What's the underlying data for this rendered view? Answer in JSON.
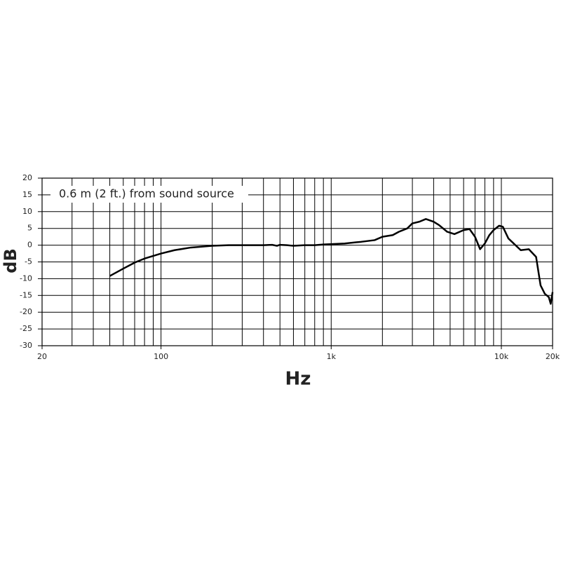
{
  "chart_data": {
    "type": "line",
    "y_label": "dB",
    "x_label": "Hz",
    "annotation": "0.6 m (2 ft.) from sound source",
    "xscale": "log",
    "xlim": [
      20,
      20000
    ],
    "xticks": [
      20,
      100,
      {
        "value": 1000,
        "label": "1k"
      },
      {
        "value": 10000,
        "label": "10k"
      },
      {
        "value": 20000,
        "label": "20k"
      }
    ],
    "xgrid": [
      30,
      40,
      50,
      60,
      70,
      80,
      90,
      200,
      300,
      400,
      500,
      600,
      700,
      800,
      900,
      2000,
      3000,
      4000,
      5000,
      6000,
      7000,
      8000,
      9000
    ],
    "ylim": [
      -30,
      20
    ],
    "yticks": [
      -30,
      -25,
      -20,
      -15,
      -10,
      -5,
      0,
      5,
      10,
      15,
      20
    ],
    "grid": true,
    "color": "#000000",
    "x": [
      50,
      60,
      70,
      80,
      100,
      120,
      150,
      200,
      250,
      300,
      400,
      450,
      480,
      500,
      550,
      600,
      700,
      800,
      900,
      1000,
      1200,
      1500,
      1800,
      2000,
      2300,
      2500,
      2800,
      3000,
      3300,
      3600,
      4000,
      4300,
      4800,
      5300,
      6000,
      6500,
      7000,
      7500,
      8000,
      8500,
      9000,
      9700,
      10200,
      11000,
      13000,
      14500,
      16000,
      17000,
      18000,
      19000,
      19500,
      20000
    ],
    "values": [
      -9.2,
      -7,
      -5.2,
      -4,
      -2.5,
      -1.5,
      -0.7,
      -0.2,
      0,
      0,
      0,
      0.1,
      -0.2,
      0.1,
      0,
      -0.2,
      0,
      0,
      0.2,
      0.3,
      0.5,
      1,
      1.5,
      2.5,
      3,
      4,
      5,
      6.5,
      7,
      7.8,
      7,
      6,
      4,
      3.3,
      4.5,
      4.8,
      2.5,
      -1.2,
      0.5,
      3,
      4.5,
      5.8,
      5.5,
      2,
      -1.5,
      -1.2,
      -3.5,
      -12,
      -14.5,
      -15.5,
      -17.5,
      -14
    ]
  }
}
